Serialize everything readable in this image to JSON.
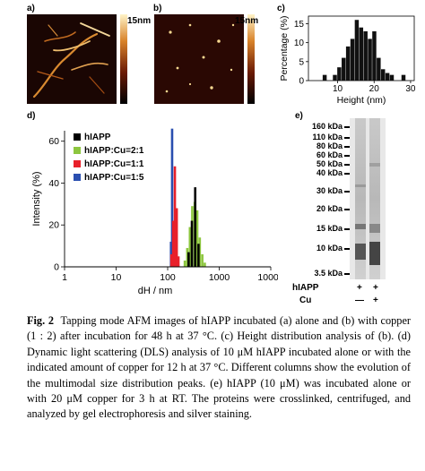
{
  "figure": {
    "panel_labels": [
      "a)",
      "b)",
      "c)",
      "d)",
      "e)"
    ],
    "colorbar_label_a": "15nm",
    "colorbar_label_b": "15nm",
    "caption_fig": "Fig. 2",
    "caption_text": "Tapping mode AFM images of hIAPP incubated (a) alone and (b) with copper (1 : 2) after incubation for 48 h at 37 °C. (c) Height distribution analysis of (b). (d) Dynamic light scattering (DLS) analysis of 10 μM hIAPP incubated alone or with the indicated amount of copper for 12 h at 37 °C. Different columns show the evolution of the multimodal size distribution peaks. (e) hIAPP (10 μM) was incubated alone or with 20 μM copper for 3 h at RT. The proteins were crosslinked, centrifuged, and analyzed by gel electrophoresis and silver staining."
  },
  "chart_data": [
    {
      "id": "c",
      "type": "bar",
      "xlabel": "Height (nm)",
      "ylabel": "Percentage (%)",
      "x_ticks": [
        10,
        20,
        30
      ],
      "y_ticks": [
        0,
        5,
        10,
        15
      ],
      "xlim": [
        2,
        31
      ],
      "ylim": [
        0,
        17
      ],
      "bin_width": 1.2,
      "x": [
        6.5,
        9.3,
        10.5,
        11.7,
        12.9,
        14.1,
        15.3,
        16.5,
        17.7,
        18.9,
        20.1,
        21.3,
        22.5,
        23.7,
        24.9,
        28.1
      ],
      "values": [
        1.5,
        1.5,
        3.5,
        6,
        9,
        11,
        16,
        14,
        13,
        11,
        13,
        6,
        3,
        2,
        1.5,
        1.5
      ],
      "color": "#111111"
    },
    {
      "id": "d",
      "type": "bar",
      "log_x": true,
      "xlabel": "dH / nm",
      "ylabel": "Intensity (%)",
      "x_ticks": [
        1,
        10,
        100,
        1000,
        10000
      ],
      "x_tick_labels": [
        "1",
        "10",
        "100",
        "1000",
        "10000"
      ],
      "y_ticks": [
        0,
        20,
        40,
        60
      ],
      "xlim": [
        1,
        10000
      ],
      "ylim": [
        0,
        65
      ],
      "series": [
        {
          "name": "hIAPP",
          "color": "#000000",
          "x": [
            255,
            295,
            342,
            396
          ],
          "values": [
            7,
            22,
            38,
            11
          ]
        },
        {
          "name": "hIAPP:Cu=2:1",
          "color": "#8dc63f",
          "x": [
            215,
            240,
            270,
            300,
            335,
            375,
            420,
            470,
            525
          ],
          "values": [
            3,
            9,
            19,
            29,
            31,
            27,
            14,
            6,
            2
          ]
        },
        {
          "name": "hIAPP:Cu=1:1",
          "color": "#e8202a",
          "x": [
            118,
            128,
            138,
            150,
            162
          ],
          "values": [
            6,
            22,
            48,
            28,
            5
          ]
        },
        {
          "name": "hIAPP:Cu=1:5",
          "color": "#2a4fb0",
          "x": [
            116,
            122,
            128
          ],
          "values": [
            12,
            66,
            8
          ]
        }
      ]
    }
  ],
  "gel": {
    "markers": [
      "160 kDa",
      "110 kDa",
      "80 kDa",
      "60 kDa",
      "50 kDa",
      "40 kDa",
      "30 kDa",
      "20 kDa",
      "15 kDa",
      "10 kDa",
      "3.5 kDa"
    ],
    "row_hiapp": "hIAPP",
    "row_cu": "Cu",
    "hiapp_marks": [
      "+",
      "+"
    ],
    "cu_marks": [
      "—",
      "+"
    ]
  }
}
